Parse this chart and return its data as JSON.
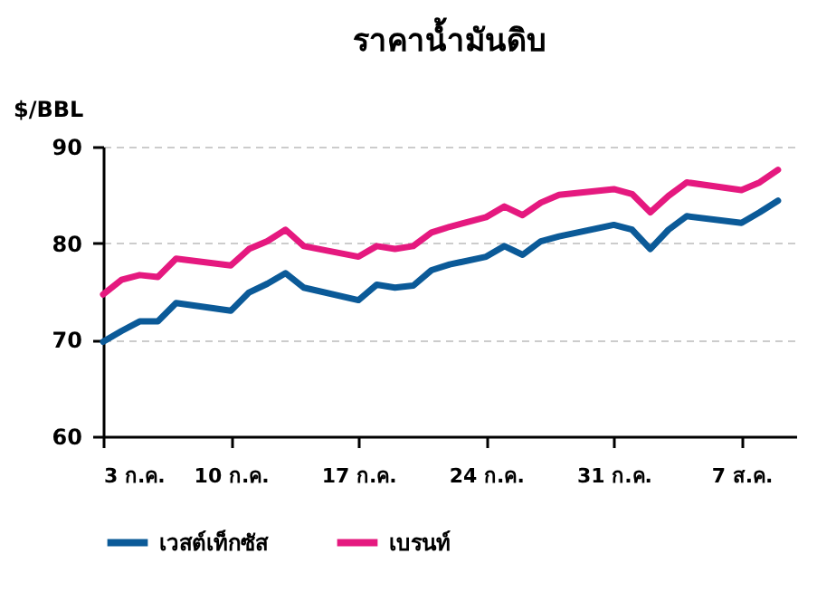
{
  "chart_data": {
    "type": "line",
    "title": "ราคาน้ำมันดิบ",
    "ylabel": "$/BBL",
    "x": [
      "--07-03",
      "--07-04",
      "--07-05",
      "--07-06",
      "--07-07",
      "--07-10",
      "--07-11",
      "--07-12",
      "--07-13",
      "--07-14",
      "--07-17",
      "--07-18",
      "--07-19",
      "--07-20",
      "--07-21",
      "--07-22",
      "--07-24",
      "--07-25",
      "--07-26",
      "--07-27",
      "--07-28",
      "--07-31",
      "--08-01",
      "--08-02",
      "--08-03",
      "--08-04",
      "--08-07",
      "--08-08",
      "--08-09"
    ],
    "series": [
      {
        "name": "เวสต์เท็กซัส",
        "color": "#0b5a98",
        "values": [
          69.8,
          70.9,
          71.9,
          71.9,
          73.8,
          73.0,
          74.9,
          75.8,
          76.9,
          75.4,
          74.1,
          75.7,
          75.4,
          75.6,
          77.2,
          77.8,
          78.6,
          79.7,
          78.8,
          80.2,
          80.7,
          81.9,
          81.4,
          79.4,
          81.4,
          82.8,
          82.1,
          83.2,
          84.4
        ]
      },
      {
        "name": "เบรนท์",
        "color": "#e5197f",
        "values": [
          74.7,
          76.2,
          76.7,
          76.5,
          78.4,
          77.7,
          79.4,
          80.2,
          81.4,
          79.7,
          78.6,
          79.7,
          79.4,
          79.7,
          81.1,
          81.7,
          82.7,
          83.8,
          82.9,
          84.2,
          85.0,
          85.6,
          85.1,
          83.2,
          84.9,
          86.3,
          85.5,
          86.3,
          87.6
        ]
      }
    ],
    "xlim": [
      "--07-03",
      "--08-10"
    ],
    "xticks": [
      {
        "value": "--07-03",
        "label": "3 ก.ค."
      },
      {
        "value": "--07-10",
        "label": "10 ก.ค."
      },
      {
        "value": "--07-17",
        "label": "17 ก.ค."
      },
      {
        "value": "--07-24",
        "label": "24 ก.ค."
      },
      {
        "value": "--07-31",
        "label": "31 ก.ค."
      },
      {
        "value": "--08-07",
        "label": "7 ส.ค."
      }
    ],
    "ylim": [
      60,
      90
    ],
    "yticks": [
      60,
      70,
      80,
      90
    ],
    "grid": "y",
    "legend": "bottom",
    "marker": "none",
    "line_style": "solid"
  }
}
